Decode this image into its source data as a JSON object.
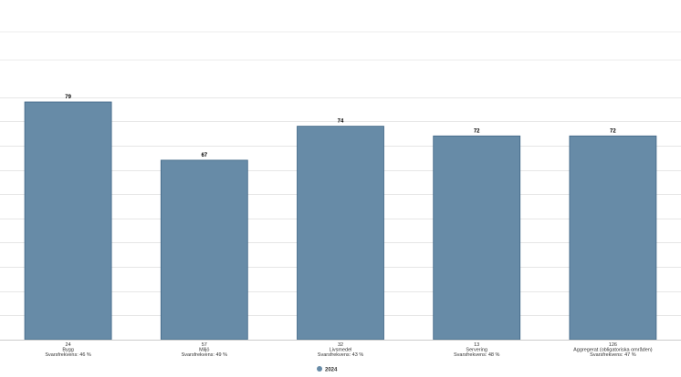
{
  "chart_data": {
    "type": "bar",
    "categories": [
      {
        "count": "24",
        "name": "Bygg",
        "response_rate": "Svarsfrekvens: 46 %"
      },
      {
        "count": "57",
        "name": "Miljö",
        "response_rate": "Svarsfrekvens: 49 %"
      },
      {
        "count": "32",
        "name": "Livsmedel",
        "response_rate": "Svarsfrekvens: 43 %"
      },
      {
        "count": "13",
        "name": "Servering",
        "response_rate": "Svarsfrekvens: 48 %"
      },
      {
        "count": "126",
        "name": "Aggregerat (obligatoriska områden)",
        "response_rate": "Svarsfrekvens: 47 %"
      }
    ],
    "series": [
      {
        "name": "2024",
        "values": [
          79,
          67,
          74,
          72,
          72
        ],
        "color": "#678ba7"
      }
    ],
    "data_labels": [
      "79",
      "67",
      "74",
      "72",
      "72"
    ],
    "ylim": [
      30,
      82
    ],
    "grid": true,
    "legend": "bottom-center",
    "title": "",
    "xlabel": "",
    "ylabel": ""
  }
}
